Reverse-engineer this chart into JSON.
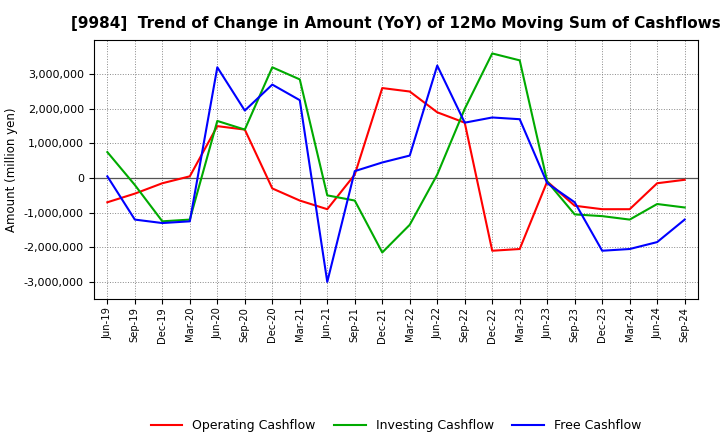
{
  "title": "[9984]  Trend of Change in Amount (YoY) of 12Mo Moving Sum of Cashflows",
  "ylabel": "Amount (million yen)",
  "x_labels": [
    "Jun-19",
    "Sep-19",
    "Dec-19",
    "Mar-20",
    "Jun-20",
    "Sep-20",
    "Dec-20",
    "Mar-21",
    "Jun-21",
    "Sep-21",
    "Dec-21",
    "Mar-22",
    "Jun-22",
    "Sep-22",
    "Dec-22",
    "Mar-23",
    "Jun-23",
    "Sep-23",
    "Dec-23",
    "Mar-24",
    "Jun-24",
    "Sep-24"
  ],
  "operating_cashflow": [
    -700000,
    -450000,
    -150000,
    50000,
    1500000,
    1400000,
    -300000,
    -650000,
    -900000,
    100000,
    2600000,
    2500000,
    1900000,
    1600000,
    -2100000,
    -2050000,
    -100000,
    -800000,
    -900000,
    -900000,
    -150000,
    -50000
  ],
  "investing_cashflow": [
    750000,
    -200000,
    -1250000,
    -1200000,
    1650000,
    1400000,
    3200000,
    2850000,
    -500000,
    -650000,
    -2150000,
    -1350000,
    100000,
    2000000,
    3600000,
    3400000,
    -100000,
    -1050000,
    -1100000,
    -1200000,
    -750000,
    -850000
  ],
  "free_cashflow": [
    50000,
    -1200000,
    -1300000,
    -1250000,
    3200000,
    1950000,
    2700000,
    2250000,
    -3000000,
    200000,
    450000,
    650000,
    3250000,
    1600000,
    1750000,
    1700000,
    -150000,
    -700000,
    -2100000,
    -2050000,
    -1850000,
    -1200000
  ],
  "operating_color": "#ff0000",
  "investing_color": "#00aa00",
  "free_color": "#0000ff",
  "line_width": 1.5,
  "ylim": [
    -3500000,
    4000000
  ],
  "yticks": [
    -3000000,
    -2000000,
    -1000000,
    0,
    1000000,
    2000000,
    3000000
  ],
  "background_color": "#ffffff",
  "title_fontsize": 11,
  "title_fontweight": "bold"
}
